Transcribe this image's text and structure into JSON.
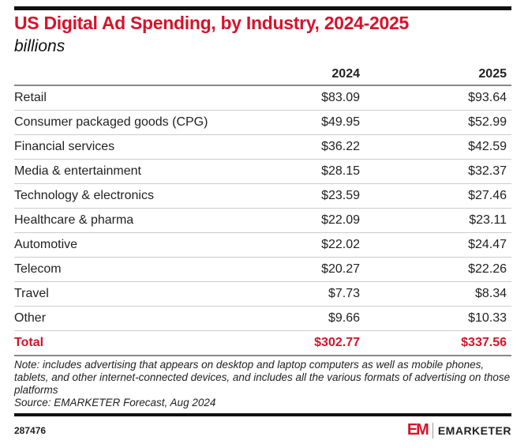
{
  "chart_data": {
    "type": "table",
    "title": "US Digital Ad Spending, by Industry, 2024-2025",
    "subtitle": "billions",
    "columns": [
      "",
      "2024",
      "2025"
    ],
    "rows": [
      {
        "label": "Retail",
        "values": [
          "$83.09",
          "$93.64"
        ]
      },
      {
        "label": "Consumer packaged goods (CPG)",
        "values": [
          "$49.95",
          "$52.99"
        ]
      },
      {
        "label": "Financial services",
        "values": [
          "$36.22",
          "$42.59"
        ]
      },
      {
        "label": "Media & entertainment",
        "values": [
          "$28.15",
          "$32.37"
        ]
      },
      {
        "label": "Technology & electronics",
        "values": [
          "$23.59",
          "$27.46"
        ]
      },
      {
        "label": "Healthcare & pharma",
        "values": [
          "$22.09",
          "$23.11"
        ]
      },
      {
        "label": "Automotive",
        "values": [
          "$22.02",
          "$24.47"
        ]
      },
      {
        "label": "Telecom",
        "values": [
          "$20.27",
          "$22.26"
        ]
      },
      {
        "label": "Travel",
        "values": [
          "$7.73",
          "$8.34"
        ]
      },
      {
        "label": "Other",
        "values": [
          "$9.66",
          "$10.33"
        ]
      }
    ],
    "total": {
      "label": "Total",
      "values": [
        "$302.77",
        "$337.56"
      ]
    },
    "accent_color": "#d7122b"
  },
  "footer": {
    "note": "Note: includes advertising that appears on desktop and laptop computers as well as mobile phones, tablets, and other internet-connected devices, and includes all the various formats of advertising on those platforms",
    "source": "Source: EMARKETER Forecast, Aug 2024",
    "chart_id": "287476",
    "logo_mark": "EM",
    "logo_text": "EMARKETER"
  }
}
